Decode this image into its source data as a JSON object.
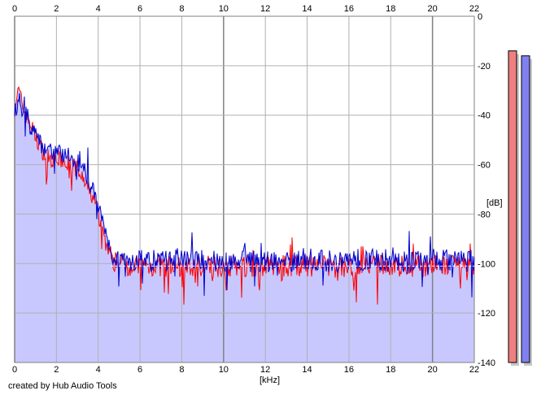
{
  "chart_data": {
    "type": "line",
    "xlabel": "[kHz]",
    "ylabel": "[dB]",
    "xlim": [
      0,
      22
    ],
    "ylim": [
      -140,
      0
    ],
    "x_ticks": [
      "0",
      "2",
      "4",
      "6",
      "8",
      "10",
      "12",
      "14",
      "16",
      "18",
      "20",
      "22"
    ],
    "y_ticks": [
      "0",
      "-20",
      "-40",
      "-60",
      "-80",
      "-100",
      "-120",
      "-140"
    ],
    "grid": true,
    "x_unit": "kHz",
    "y_unit": "dB",
    "background_fill": "#c8c8ff",
    "colors": {
      "left": "#ff0000",
      "right": "#0000cc",
      "fill": "#c8c8ff",
      "grid": "#b0b0b0",
      "major_grid": "#808080"
    },
    "series": [
      {
        "color": "#ff0000",
        "x": [
          0,
          0.2,
          0.4,
          0.6,
          0.8,
          1.0,
          1.2,
          1.5,
          2.0,
          2.5,
          3.0,
          3.3,
          3.6,
          3.9,
          4.1,
          4.3,
          4.5,
          4.7,
          5,
          6,
          7,
          8,
          9,
          10,
          11,
          12,
          13,
          14,
          15,
          16,
          17,
          18,
          19,
          20,
          21,
          22
        ],
        "y": [
          -36,
          -30,
          -37,
          -41,
          -44,
          -49,
          -52,
          -57,
          -58,
          -59,
          -62,
          -67,
          -71,
          -76,
          -83,
          -90,
          -95,
          -99,
          -100,
          -101,
          -101,
          -102,
          -101,
          -101,
          -101,
          -101,
          -101,
          -101,
          -101,
          -102,
          -101,
          -101,
          -101,
          -101,
          -101,
          -103
        ]
      },
      {
        "color": "#0000cc",
        "x": [
          0,
          0.2,
          0.4,
          0.6,
          0.8,
          1.0,
          1.2,
          1.5,
          2.0,
          2.5,
          3.0,
          3.3,
          3.6,
          3.9,
          4.1,
          4.3,
          4.5,
          4.7,
          5,
          6,
          7,
          8,
          9,
          10,
          11,
          12,
          13,
          14,
          15,
          16,
          17,
          18,
          19,
          20,
          21,
          22
        ],
        "y": [
          -40,
          -33,
          -39,
          -40,
          -46,
          -47,
          -51,
          -54,
          -55,
          -56,
          -59,
          -62,
          -67,
          -73,
          -80,
          -87,
          -92,
          -97,
          -98,
          -99,
          -99,
          -98,
          -99,
          -99,
          -99,
          -99,
          -99,
          -98,
          -99,
          -99,
          -98,
          -99,
          -99,
          -98,
          -99,
          -99
        ]
      }
    ],
    "meters": {
      "left": -14,
      "right": -16
    }
  },
  "footer": {
    "credit": "created by Hub Audio Tools"
  }
}
